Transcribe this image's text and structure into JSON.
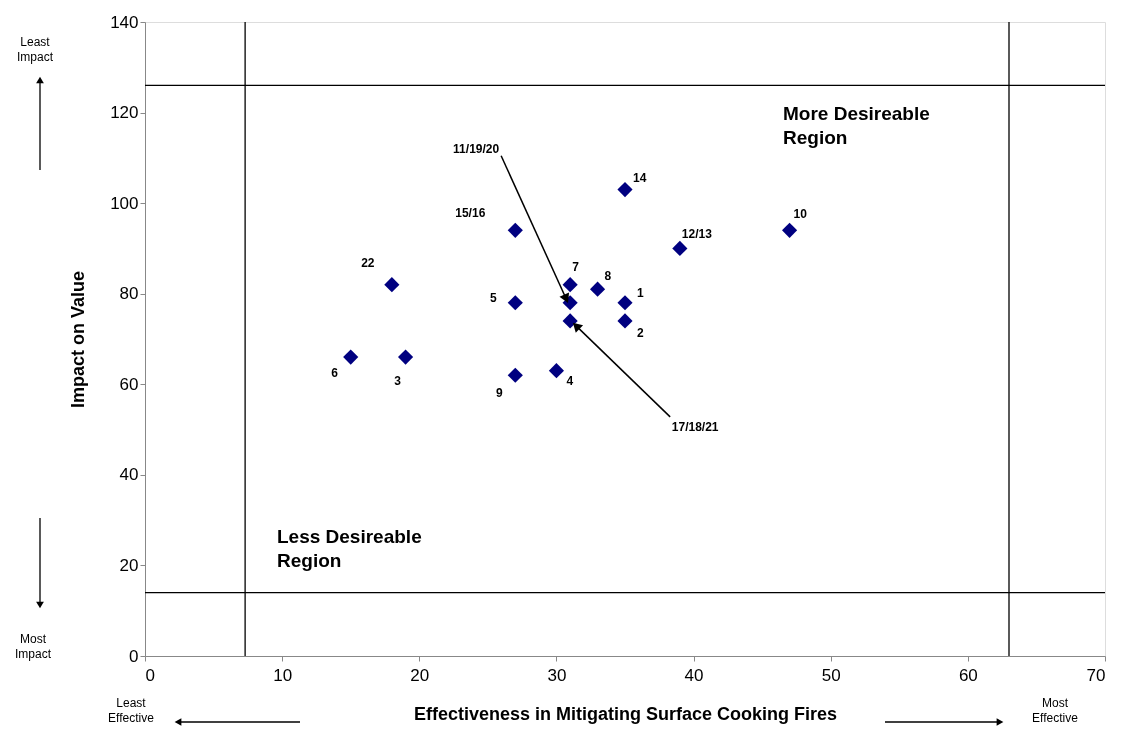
{
  "chart_data": {
    "type": "scatter",
    "xlabel": "Effectiveness in Mitigating Surface Cooking Fires",
    "ylabel": "Impact on Value",
    "xlim": [
      0,
      70
    ],
    "xticks": [
      0,
      10,
      20,
      30,
      40,
      50,
      60,
      70
    ],
    "ylim": [
      0,
      140
    ],
    "yticks": [
      0,
      20,
      40,
      60,
      80,
      100,
      120,
      140
    ],
    "grid": false,
    "marker": "diamond",
    "series": [
      {
        "color": "#000080",
        "x": [
          35,
          35,
          19,
          30,
          27,
          15,
          31,
          33,
          27,
          47,
          31,
          39,
          35,
          27,
          31,
          18
        ],
        "values": [
          78,
          74,
          66,
          63,
          78,
          66,
          82,
          81,
          62,
          94,
          78,
          90,
          103,
          94,
          74,
          82
        ]
      }
    ],
    "ref_lines": [
      {
        "axis": "x",
        "value": 7.3,
        "color": "#000000"
      },
      {
        "axis": "x",
        "value": 63,
        "color": "#000000"
      },
      {
        "axis": "y",
        "value": 126,
        "color": "#000000"
      },
      {
        "axis": "y",
        "value": 14,
        "color": "#000000"
      }
    ],
    "annotations": [
      {
        "text": "1",
        "x": 35,
        "y": 78
      },
      {
        "text": "2",
        "x": 35,
        "y": 74
      },
      {
        "text": "3",
        "x": 19,
        "y": 66
      },
      {
        "text": "4",
        "x": 30,
        "y": 63
      },
      {
        "text": "5",
        "x": 27,
        "y": 78
      },
      {
        "text": "6",
        "x": 15,
        "y": 66
      },
      {
        "text": "7",
        "x": 31,
        "y": 82
      },
      {
        "text": "8",
        "x": 33,
        "y": 81
      },
      {
        "text": "9",
        "x": 27,
        "y": 62
      },
      {
        "text": "10",
        "x": 47,
        "y": 94
      },
      {
        "text": "11/19/20",
        "x": 31,
        "y": 78
      },
      {
        "text": "12/13",
        "x": 39,
        "y": 90
      },
      {
        "text": "14",
        "x": 35,
        "y": 103
      },
      {
        "text": "15/16",
        "x": 27,
        "y": 94
      },
      {
        "text": "17/18/21",
        "x": 31,
        "y": 74
      },
      {
        "text": "22",
        "x": 18,
        "y": 82
      },
      "More Desireable\nRegion",
      "Less Desireable\nRegion",
      "Least\nImpact",
      "Most\nImpact",
      "Least\nEffective",
      "Most\nEffective"
    ]
  }
}
